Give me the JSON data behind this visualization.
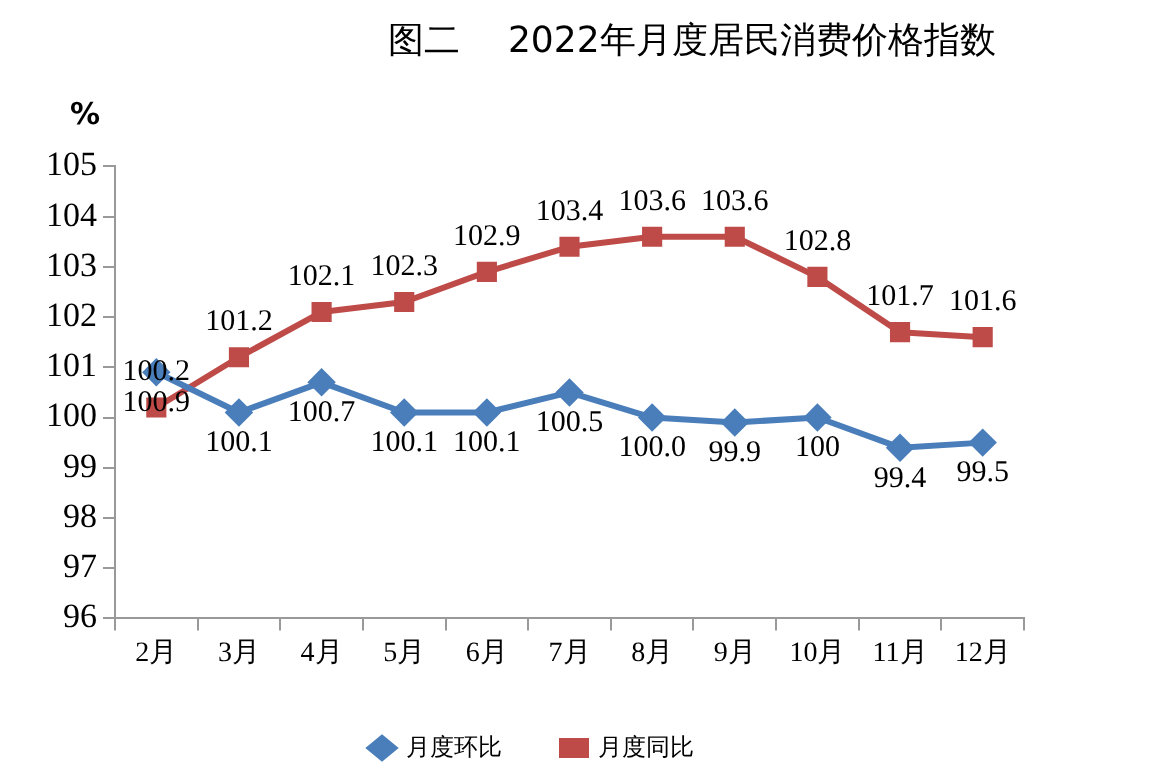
{
  "chart_data": {
    "type": "line",
    "title": "图二　 2022年月度居民消费价格指数",
    "ylabel": "%",
    "categories": [
      "2月",
      "3月",
      "4月",
      "5月",
      "6月",
      "7月",
      "8月",
      "9月",
      "10月",
      "11月",
      "12月"
    ],
    "series": [
      {
        "name": "月度环比",
        "color": "#4a7ebb",
        "marker": "diamond",
        "values": [
          100.9,
          100.1,
          100.7,
          100.1,
          100.1,
          100.5,
          100.0,
          99.9,
          100,
          99.4,
          99.5
        ],
        "value_labels": [
          "100.9",
          "100.1",
          "100.7",
          "100.1",
          "100.1",
          "100.5",
          "100.0",
          "99.9",
          "100",
          "99.4",
          "99.5"
        ]
      },
      {
        "name": "月度同比",
        "color": "#be4b48",
        "marker": "square",
        "values": [
          100.2,
          101.2,
          102.1,
          102.3,
          102.9,
          103.4,
          103.6,
          103.6,
          102.8,
          101.7,
          101.6
        ],
        "value_labels": [
          "100.2",
          "101.2",
          "102.1",
          "102.3",
          "102.9",
          "103.4",
          "103.6",
          "103.6",
          "102.8",
          "101.7",
          "101.6"
        ]
      }
    ],
    "ylim": [
      96,
      105
    ],
    "yticks": [
      96,
      97,
      98,
      99,
      100,
      101,
      102,
      103,
      104,
      105
    ],
    "grid": false,
    "legend": "bottom"
  }
}
